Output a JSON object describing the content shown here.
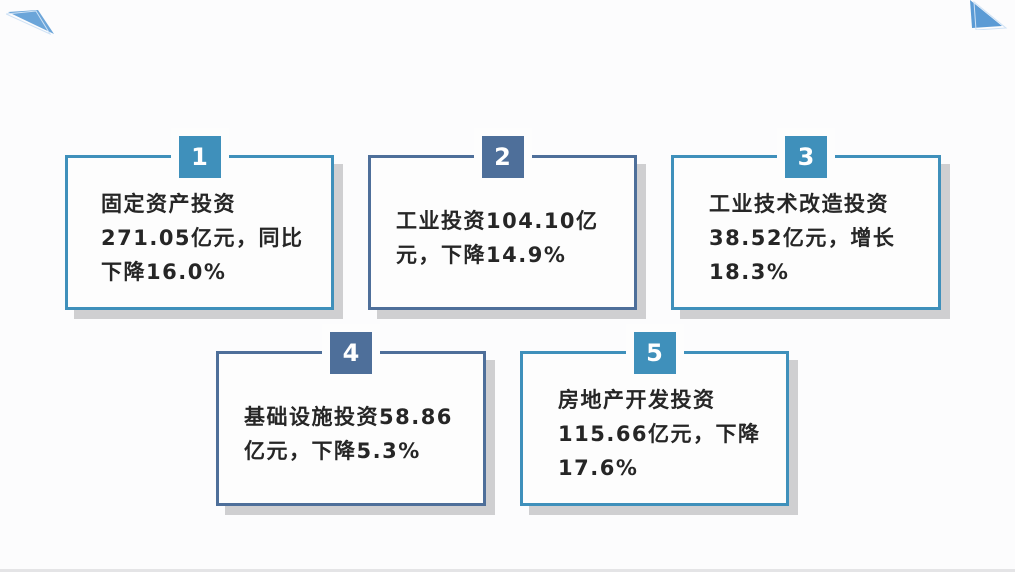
{
  "colors": {
    "light_blue": "#3f90bb",
    "slate_blue": "#4e6f9a",
    "shadow": "#cfcfd1"
  },
  "cards": [
    {
      "number": "1",
      "text": "固定资产投资271.05亿元，同比下降16.0%"
    },
    {
      "number": "2",
      "text": "工业投资104.10亿元，下降14.9%"
    },
    {
      "number": "3",
      "text": "工业技术改造投资38.52亿元，增长18.3%"
    },
    {
      "number": "4",
      "text": "基础设施投资58.86亿元，下降5.3%"
    },
    {
      "number": "5",
      "text": "房地产开发投资115.66亿元，下降17.6%"
    }
  ]
}
